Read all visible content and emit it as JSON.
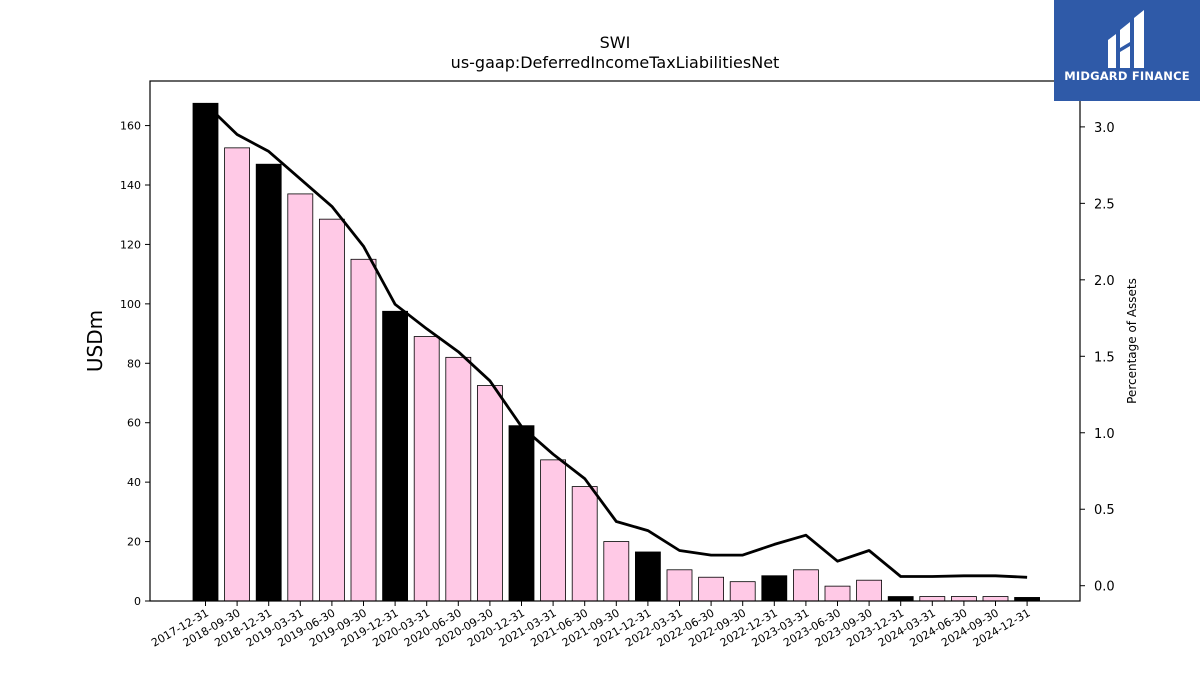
{
  "chart_data": {
    "type": "bar",
    "title": "SWI",
    "subtitle": "us-gaap:DeferredIncomeTaxLiabilitiesNet",
    "ylabel": "USDm",
    "y2label": "Percentage of Assets",
    "ylim": [
      0,
      175
    ],
    "y2lim": [
      -0.1,
      3.3
    ],
    "yticks": [
      0,
      20,
      40,
      60,
      80,
      100,
      120,
      140,
      160
    ],
    "y2ticks": [
      0.0,
      0.5,
      1.0,
      1.5,
      2.0,
      2.5,
      3.0
    ],
    "categories": [
      "2017-12-31",
      "2018-09-30",
      "2018-12-31",
      "2019-03-31",
      "2019-06-30",
      "2019-09-30",
      "2019-12-31",
      "2020-03-31",
      "2020-06-30",
      "2020-09-30",
      "2020-12-31",
      "2021-03-31",
      "2021-06-30",
      "2021-09-30",
      "2021-12-31",
      "2022-03-31",
      "2022-06-30",
      "2022-09-30",
      "2022-12-31",
      "2023-03-31",
      "2023-06-30",
      "2023-09-30",
      "2023-12-31",
      "2024-03-31",
      "2024-06-30",
      "2024-09-30",
      "2024-12-31"
    ],
    "values": [
      167.5,
      152.5,
      147.0,
      137.0,
      128.5,
      115.0,
      97.5,
      89.0,
      82.0,
      72.5,
      59.0,
      47.5,
      38.5,
      20.0,
      16.5,
      10.5,
      8.0,
      6.5,
      8.5,
      10.5,
      5.0,
      7.0,
      1.5,
      1.5,
      1.5,
      1.5,
      1.2
    ],
    "year_end": [
      true,
      false,
      true,
      false,
      false,
      false,
      true,
      false,
      false,
      false,
      true,
      false,
      false,
      false,
      true,
      false,
      false,
      false,
      true,
      false,
      false,
      false,
      true,
      false,
      false,
      false,
      true
    ],
    "line_values": [
      3.15,
      2.95,
      2.84,
      2.66,
      2.48,
      2.22,
      1.84,
      1.68,
      1.53,
      1.34,
      1.04,
      0.86,
      0.7,
      0.42,
      0.36,
      0.23,
      0.2,
      0.2,
      0.27,
      0.33,
      0.16,
      0.23,
      0.06,
      0.06,
      0.065,
      0.065,
      0.055
    ],
    "colors": {
      "year_end_bar": "#000000",
      "other_bar": "#ffc9e6",
      "line": "#000000"
    }
  },
  "logo": {
    "text": "MIDGARD FINANCE"
  }
}
